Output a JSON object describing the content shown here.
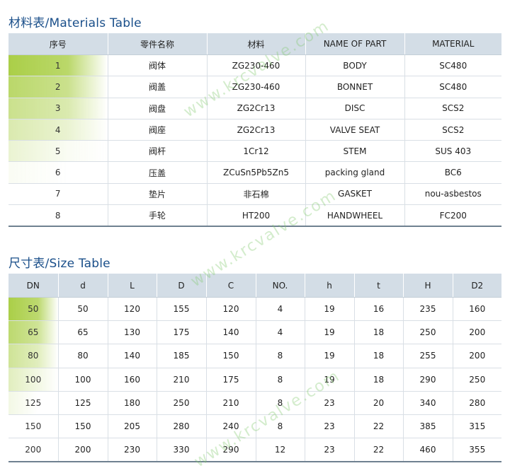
{
  "materials": {
    "title": "材料表/Materials Table",
    "headers": [
      "序号",
      "零件名称",
      "材料",
      "NAME OF PART",
      "MATERIAL"
    ],
    "rows": [
      [
        "1",
        "阀体",
        "ZG230-460",
        "BODY",
        "SC480"
      ],
      [
        "2",
        "阀盖",
        "ZG230-460",
        "BONNET",
        "SC480"
      ],
      [
        "3",
        "阀盘",
        "ZG2Cr13",
        "DISC",
        "SCS2"
      ],
      [
        "4",
        "阀座",
        "ZG2Cr13",
        "VALVE SEAT",
        "SCS2"
      ],
      [
        "5",
        "阀杆",
        "1Cr12",
        "STEM",
        "SUS 403"
      ],
      [
        "6",
        "压盖",
        "ZCuSn5Pb5Zn5",
        "packing gland",
        "BC6"
      ],
      [
        "7",
        "垫片",
        "非石棉",
        "GASKET",
        "nou-asbestos"
      ],
      [
        "8",
        "手轮",
        "HT200",
        "HANDWHEEL",
        "FC200"
      ]
    ]
  },
  "sizes": {
    "title": "尺寸表/Size Table",
    "headers": [
      "DN",
      "d",
      "L",
      "D",
      "C",
      "NO.",
      "h",
      "t",
      "H",
      "D2"
    ],
    "rows": [
      [
        "50",
        "50",
        "120",
        "155",
        "120",
        "4",
        "19",
        "16",
        "235",
        "160"
      ],
      [
        "65",
        "65",
        "130",
        "175",
        "140",
        "4",
        "19",
        "18",
        "250",
        "200"
      ],
      [
        "80",
        "80",
        "140",
        "185",
        "150",
        "8",
        "19",
        "18",
        "255",
        "200"
      ],
      [
        "100",
        "100",
        "160",
        "210",
        "175",
        "8",
        "19",
        "18",
        "290",
        "250"
      ],
      [
        "125",
        "125",
        "180",
        "250",
        "210",
        "8",
        "23",
        "20",
        "340",
        "280"
      ],
      [
        "150",
        "150",
        "205",
        "280",
        "240",
        "8",
        "23",
        "22",
        "385",
        "315"
      ],
      [
        "200",
        "200",
        "230",
        "330",
        "290",
        "12",
        "23",
        "22",
        "460",
        "355"
      ]
    ]
  },
  "watermark": "www.krcvalve.com",
  "colors": {
    "header_bg": "#d3dde6",
    "title": "#1a4f8a",
    "first_col_gradient_top": "#a6cc3e",
    "first_col_gradient_fade": "#ffffff"
  }
}
